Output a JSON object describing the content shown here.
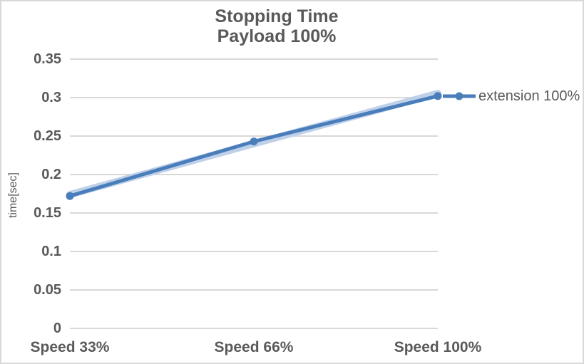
{
  "title": {
    "line1": "Stopping Time",
    "line2": "Payload 100%"
  },
  "y_axis": {
    "title": "time[sec]",
    "tick_labels": [
      "0.35",
      "0.3",
      "0.25",
      "0.2",
      "0.15",
      "0.1",
      "0.05",
      "0"
    ]
  },
  "legend": {
    "label": "extension 100%"
  },
  "colors": {
    "line": "#4a7ebb",
    "band": "#bfd0e9",
    "grid": "#d9d9d9",
    "text": "#595959"
  },
  "chart_data": {
    "type": "line",
    "title": "Stopping Time Payload 100%",
    "xlabel": "",
    "ylabel": "time[sec]",
    "categories": [
      "Speed 33%",
      "Speed 66%",
      "Speed 100%"
    ],
    "series": [
      {
        "name": "band (unlabeled shadow series)",
        "values": [
          0.174,
          0.24,
          0.3055
        ],
        "color": "#bfd0e9",
        "markers": false,
        "stroke_width": 10
      },
      {
        "name": "extension 100%",
        "values": [
          0.172,
          0.243,
          0.302
        ],
        "color": "#4a7ebb",
        "markers": true,
        "stroke_width": 5
      }
    ],
    "ylim": [
      0,
      0.35
    ],
    "ytick_step": 0.05,
    "grid": true,
    "legend_position": "right"
  }
}
